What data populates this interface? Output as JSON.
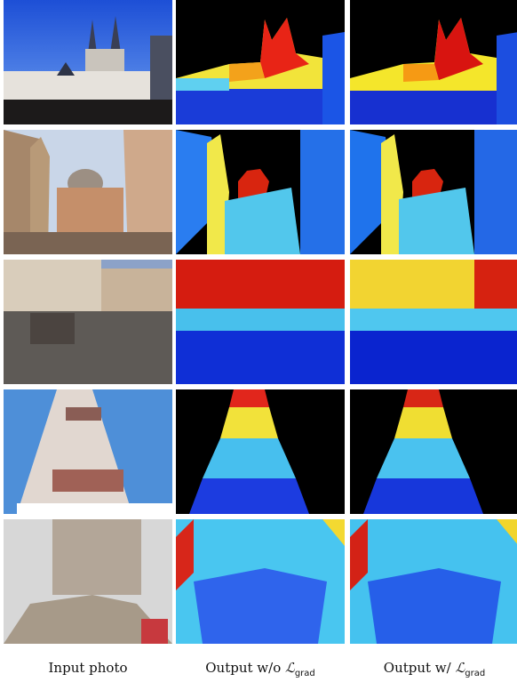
{
  "columns": [
    {
      "title": "Input photo"
    },
    {
      "prefix": "Output w/o",
      "symbol": "ℒ",
      "subscript": "grad"
    },
    {
      "prefix": "Output w/",
      "symbol": "ℒ",
      "subscript": "grad"
    }
  ],
  "rows": [
    {
      "id": "prague-church"
    },
    {
      "id": "venice-basilica"
    },
    {
      "id": "town-square"
    },
    {
      "id": "bell-tower"
    },
    {
      "id": "sagrada-familia"
    }
  ]
}
